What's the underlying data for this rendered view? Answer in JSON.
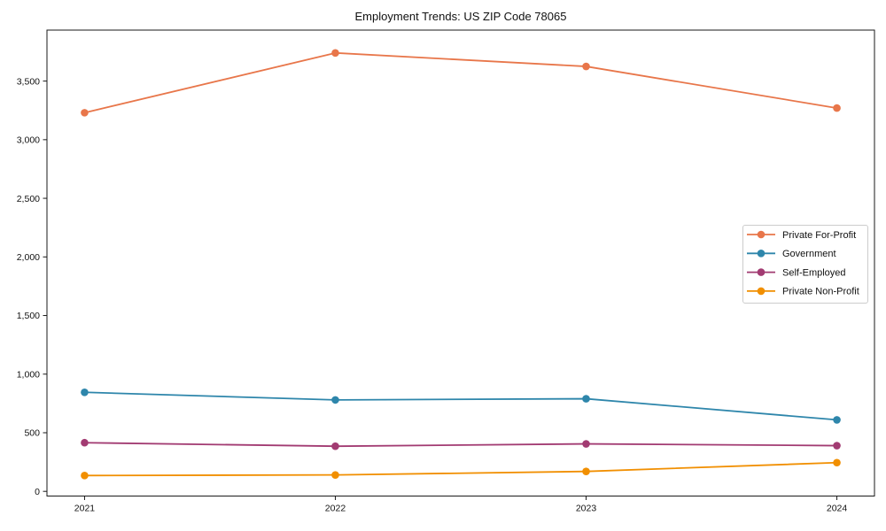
{
  "title": "Employment Trends: US ZIP Code 78065",
  "colors": {
    "background": "#ffffff",
    "frame": "#1a1a1a",
    "tick": "#1a1a1a",
    "text": "#111111",
    "legend_border": "#cccccc",
    "legend_background": "#ffffff"
  },
  "chart_data": {
    "type": "line",
    "title": "Employment Trends: US ZIP Code 78065",
    "x": [
      2021,
      2022,
      2023,
      2024
    ],
    "x_tick_labels": [
      "2021",
      "2022",
      "2023",
      "2024"
    ],
    "series": [
      {
        "name": "Private For-Profit",
        "color": "#E8764A",
        "values": [
          3230,
          3740,
          3625,
          3270
        ]
      },
      {
        "name": "Government",
        "color": "#2E86AB",
        "values": [
          845,
          780,
          790,
          610
        ]
      },
      {
        "name": "Self-Employed",
        "color": "#A23B72",
        "values": [
          415,
          385,
          405,
          390
        ]
      },
      {
        "name": "Private Non-Profit",
        "color": "#F18F01",
        "values": [
          135,
          140,
          170,
          245
        ]
      }
    ],
    "xlabel": "",
    "ylabel": "",
    "xlim": [
      2020.85,
      2024.15
    ],
    "ylim": [
      -40,
      3935
    ],
    "yticks": [
      0,
      500,
      1000,
      1500,
      2000,
      2500,
      3000,
      3500
    ],
    "ytick_labels": [
      "0",
      "500",
      "1,000",
      "1,500",
      "2,000",
      "2,500",
      "3,000",
      "3,500"
    ],
    "grid": false,
    "legend_position": "center-right",
    "marker": "circle"
  }
}
